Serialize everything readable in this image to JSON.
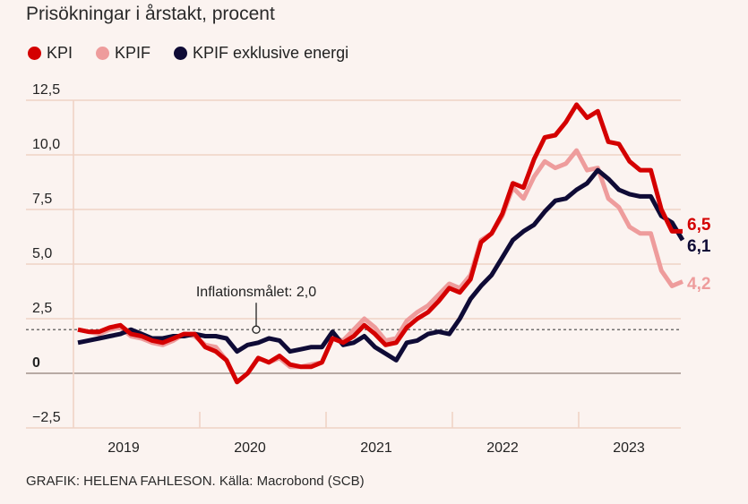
{
  "title": "Prisökningar i årstakt, procent",
  "source": "GRAFIK: HELENA FAHLESON. Källa: Macrobond (SCB)",
  "legend": [
    {
      "label": "KPI",
      "color": "#d40000"
    },
    {
      "label": "KPIF",
      "color": "#ee9c9c"
    },
    {
      "label": "KPIF exklusive energi",
      "color": "#0f0b36"
    }
  ],
  "chart_data": {
    "type": "line",
    "title": "Prisökningar i årstakt, procent",
    "xlabel": "",
    "ylabel": "",
    "ylim": [
      -2.5,
      12.5
    ],
    "yticks": [
      -2.5,
      0,
      2.5,
      5.0,
      7.5,
      10.0,
      12.5
    ],
    "ytick_labels": [
      "−2,5",
      "0",
      "2,5",
      "5,0",
      "7,5",
      "10,0",
      "12,5"
    ],
    "x_start": "2019-01",
    "x_end": "2023-10",
    "xtick_labels": [
      "2019",
      "2020",
      "2021",
      "2022",
      "2023"
    ],
    "grid": true,
    "legend_position": "top-left",
    "annotations": [
      {
        "text": "Inflationsmålet: 2,0",
        "value": 2.0,
        "type": "reference-line"
      }
    ],
    "series": [
      {
        "name": "KPI",
        "color": "#d40000",
        "end_label": "6,5",
        "values": [
          2.0,
          1.9,
          1.9,
          2.1,
          2.2,
          1.8,
          1.7,
          1.5,
          1.4,
          1.6,
          1.8,
          1.8,
          1.2,
          1.0,
          0.6,
          -0.4,
          0.0,
          0.7,
          0.5,
          0.8,
          0.4,
          0.3,
          0.3,
          0.5,
          1.6,
          1.4,
          1.7,
          2.2,
          1.8,
          1.3,
          1.4,
          2.1,
          2.5,
          2.8,
          3.3,
          3.9,
          3.7,
          4.3,
          6.0,
          6.4,
          7.3,
          8.7,
          8.5,
          9.8,
          10.8,
          10.9,
          11.5,
          12.3,
          11.7,
          12.0,
          10.6,
          10.5,
          9.7,
          9.3,
          9.3,
          7.5,
          6.5,
          6.5
        ]
      },
      {
        "name": "KPIF",
        "color": "#ee9c9c",
        "end_label": "4,2",
        "values": [
          2.0,
          1.9,
          1.8,
          2.0,
          2.1,
          1.7,
          1.6,
          1.4,
          1.3,
          1.5,
          1.8,
          1.7,
          1.3,
          1.2,
          0.6,
          -0.4,
          0.0,
          0.7,
          0.5,
          0.7,
          0.3,
          0.3,
          0.4,
          0.5,
          1.6,
          1.5,
          2.0,
          2.5,
          2.1,
          1.5,
          1.6,
          2.4,
          2.8,
          3.1,
          3.6,
          4.1,
          3.9,
          4.5,
          6.1,
          6.4,
          7.2,
          8.5,
          8.0,
          9.0,
          9.7,
          9.4,
          9.6,
          10.2,
          9.3,
          9.4,
          8.0,
          7.6,
          6.7,
          6.4,
          6.4,
          4.7,
          4.0,
          4.2
        ]
      },
      {
        "name": "KPIF exklusive energi",
        "color": "#0f0b36",
        "end_label": "6,1",
        "values": [
          1.4,
          1.5,
          1.6,
          1.7,
          1.8,
          2.0,
          1.8,
          1.6,
          1.6,
          1.7,
          1.7,
          1.8,
          1.7,
          1.7,
          1.6,
          1.0,
          1.3,
          1.4,
          1.6,
          1.5,
          1.0,
          1.1,
          1.2,
          1.2,
          1.9,
          1.3,
          1.4,
          1.7,
          1.2,
          0.9,
          0.6,
          1.4,
          1.5,
          1.8,
          1.9,
          1.8,
          2.5,
          3.4,
          4.0,
          4.5,
          5.3,
          6.1,
          6.5,
          6.8,
          7.4,
          7.9,
          8.0,
          8.4,
          8.7,
          9.3,
          8.9,
          8.4,
          8.2,
          8.1,
          8.1,
          7.2,
          6.9,
          6.1
        ]
      }
    ]
  }
}
